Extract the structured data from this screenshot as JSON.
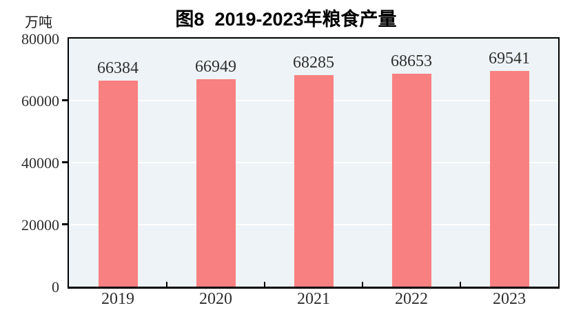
{
  "chart_data": {
    "type": "bar",
    "title": "图8  2019-2023年粮食产量",
    "unit_label": "万吨",
    "categories": [
      "2019",
      "2020",
      "2021",
      "2022",
      "2023"
    ],
    "values": [
      66384,
      66949,
      68285,
      68653,
      69541
    ],
    "series_name": "粮食产量",
    "xlabel": "",
    "ylabel": "万吨",
    "ylim": [
      0,
      80000
    ],
    "yticks": [
      0,
      20000,
      40000,
      60000,
      80000
    ],
    "grid": true,
    "gridline_ticks": [
      20000,
      40000,
      60000
    ],
    "legend_position": "none",
    "colors": {
      "bar": "#F98080",
      "plot_background": "#EDF3F6",
      "gridline": "#FFFFFF",
      "axis": "#000000",
      "label_text": "#2e2e2e",
      "title_text": "#000000"
    }
  }
}
